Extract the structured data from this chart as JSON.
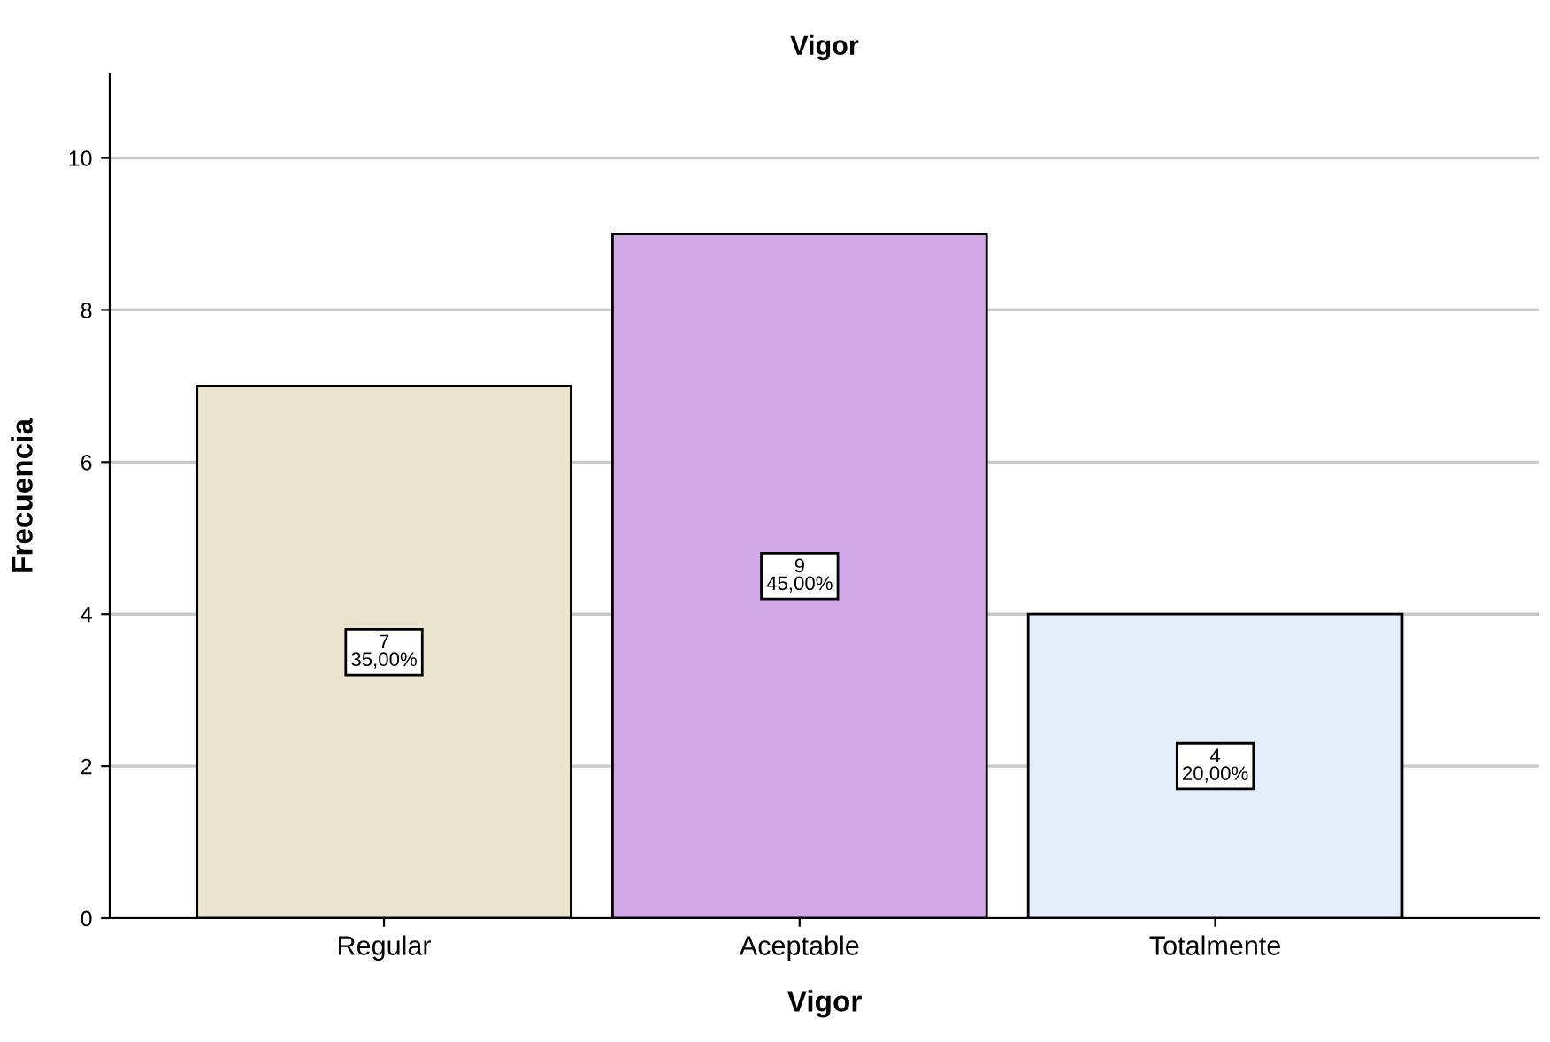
{
  "chart_data": {
    "type": "bar",
    "title": "Vigor",
    "xlabel": "Vigor",
    "ylabel": "Frecuencia",
    "categories": [
      "Regular",
      "Aceptable",
      "Totalmente"
    ],
    "values": [
      7,
      9,
      4
    ],
    "colors": [
      "#ebe4cf",
      "#d1a9e6",
      "#e3eefa"
    ],
    "value_labels": [
      "7\n35,00%",
      "9\n45,00%",
      "4\n20,00%"
    ],
    "ylim": [
      0,
      11.1
    ],
    "yticks": [
      0,
      2,
      4,
      6,
      8,
      10
    ],
    "grid": "y"
  }
}
